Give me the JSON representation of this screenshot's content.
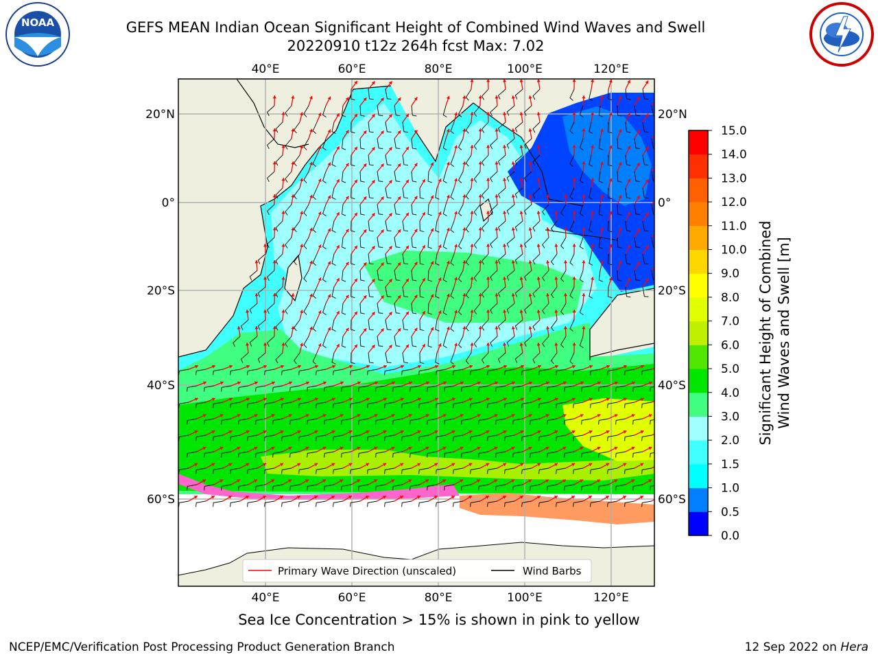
{
  "title": {
    "line1": "GEFS MEAN Indian Ocean Significant Height of Combined Wind Waves and Swell",
    "line2": "20220910 t12z 264h fcst   Max: 7.02"
  },
  "map": {
    "lon_labels": [
      "40°E",
      "60°E",
      "80°E",
      "100°E",
      "120°E"
    ],
    "lon_values": [
      40,
      60,
      80,
      100,
      120
    ],
    "lat_labels": [
      "20°N",
      "0°",
      "20°S",
      "40°S",
      "60°S"
    ],
    "lat_values": [
      20,
      0,
      -20,
      -40,
      -60
    ],
    "colors": {
      "land": "#efefdf",
      "ice": "#ffffff",
      "arrow": "#ff0000",
      "barb": "#000000",
      "grid": "#b0b0b0"
    }
  },
  "legend": {
    "wave_label": "Primary Wave Direction (unscaled)",
    "barb_label": "Wind Barbs"
  },
  "colorbar": {
    "title_line1": "Significant Height of Combined",
    "title_line2": "Wind Waves and Swell [m]",
    "tick_labels": [
      "0.0",
      "0.5",
      "1.0",
      "1.5",
      "2.0",
      "3.0",
      "4.0",
      "5.0",
      "6.0",
      "7.0",
      "8.0",
      "9.0",
      "10.0",
      "11.0",
      "12.0",
      "13.0",
      "14.0",
      "15.0"
    ],
    "colors": [
      "#0000ff",
      "#0080ff",
      "#00ffff",
      "#40ffff",
      "#a0ffff",
      "#40ff80",
      "#00e600",
      "#50e600",
      "#c0f000",
      "#e0ff00",
      "#ffff00",
      "#ffd700",
      "#ffaa00",
      "#ff8000",
      "#ff6000",
      "#ff3000",
      "#ff0000"
    ]
  },
  "caption": "Sea Ice Concentration > 15% is shown in pink to yellow",
  "footer": {
    "left": "NCEP/EMC/Verification Post Processing Product Generation Branch",
    "right_prefix": "12 Sep 2022 on ",
    "right_host": "Hera"
  }
}
